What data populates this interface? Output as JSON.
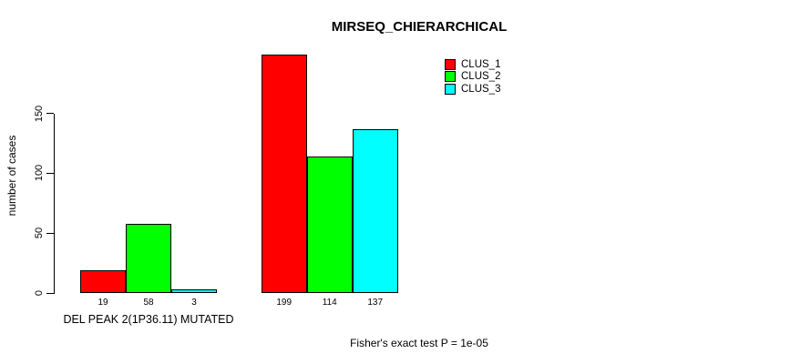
{
  "chart_data": {
    "type": "bar",
    "title": "MIRSEQ_CHIERARCHICAL",
    "ylabel": "number of cases",
    "xlabel": "",
    "ylim": [
      0,
      150
    ],
    "yticks": [
      0,
      50,
      100,
      150
    ],
    "grid": false,
    "legend_position": "top-right",
    "categories": [
      "DEL PEAK 2(1P36.11) MUTATED",
      ""
    ],
    "series": [
      {
        "name": "CLUS_1",
        "color": "#ff0000",
        "values": [
          19,
          199
        ]
      },
      {
        "name": "CLUS_2",
        "color": "#00ff00",
        "values": [
          58,
          114
        ]
      },
      {
        "name": "CLUS_3",
        "color": "#00ffff",
        "values": [
          3,
          137
        ]
      }
    ],
    "bar_value_labels_shown": true,
    "annotation": "Fisher's exact test P = 1e-05"
  }
}
